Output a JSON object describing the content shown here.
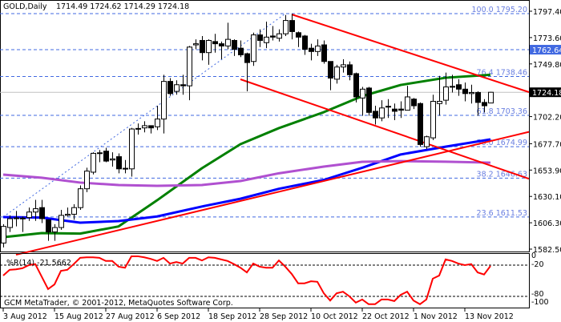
{
  "header": {
    "symbol": "GOLD,Daily",
    "ohlc": "1714.49 1724.62 1714.29 1724.18"
  },
  "footer": {
    "copyright": "GCM MetaTrader, © 2001-2012, MetaQuotes Software Corp."
  },
  "colors": {
    "bull": "#ffffff",
    "bear": "#000000",
    "ma_green": "#008000",
    "ma_blue": "#0000ff",
    "ma_purple": "#b050d0",
    "trendline": "#ff0000",
    "fib": "#4169e1",
    "wpr": "#ff0000",
    "bid_line": "#c0c0c0",
    "hline_label_bg": "#4169e1"
  },
  "chart_data": [
    {
      "type": "candlestick",
      "title": "GOLD,Daily",
      "y_ticks": [
        "1797.40",
        "1773.60",
        "1749.80",
        "1702.20",
        "1677.70",
        "1653.90",
        "1630.10",
        "1606.30",
        "1582.50"
      ],
      "ylim": [
        1582.5,
        1797.4
      ],
      "x_ticks": [
        "3 Aug 2012",
        "15 Aug 2012",
        "27 Aug 2012",
        "6 Sep 2012",
        "18 Sep 2012",
        "28 Sep 2012",
        "10 Oct 2012",
        "22 Oct 2012",
        "1 Nov 2012",
        "13 Nov 2012"
      ],
      "current_price": "1724.18",
      "horizontal_line": "1762.64",
      "candles_columns": [
        "date",
        "open",
        "high",
        "low",
        "close"
      ],
      "candles": [
        [
          "2012-08-03",
          1588,
          1605,
          1584,
          1603
        ],
        [
          "2012-08-06",
          1602,
          1613,
          1598,
          1610
        ],
        [
          "2012-08-07",
          1610,
          1617,
          1603,
          1610.7
        ],
        [
          "2012-08-08",
          1610.5,
          1612,
          1598,
          1610
        ],
        [
          "2012-08-09",
          1611,
          1620,
          1608,
          1616
        ],
        [
          "2012-08-10",
          1616,
          1627,
          1608,
          1619
        ],
        [
          "2012-08-13",
          1620,
          1627,
          1606,
          1610
        ],
        [
          "2012-08-14",
          1609,
          1609,
          1590,
          1598
        ],
        [
          "2012-08-15",
          1598,
          1605,
          1590,
          1602
        ],
        [
          "2012-08-16",
          1602,
          1618,
          1600,
          1613
        ],
        [
          "2012-08-17",
          1613,
          1620,
          1612,
          1614
        ],
        [
          "2012-08-20",
          1614,
          1623,
          1609,
          1620
        ],
        [
          "2012-08-21",
          1620,
          1640,
          1618,
          1637
        ],
        [
          "2012-08-22",
          1637,
          1656,
          1634,
          1653
        ],
        [
          "2012-08-23",
          1652,
          1670,
          1650,
          1669
        ],
        [
          "2012-08-24",
          1669,
          1672,
          1661,
          1669.5
        ],
        [
          "2012-08-27",
          1671,
          1674,
          1661,
          1662
        ],
        [
          "2012-08-28",
          1663,
          1670,
          1657,
          1664
        ],
        [
          "2012-08-29",
          1666,
          1669,
          1651,
          1655
        ],
        [
          "2012-08-30",
          1655,
          1663,
          1651,
          1655.5
        ],
        [
          "2012-08-31",
          1655,
          1692,
          1648,
          1691
        ],
        [
          "2012-09-03",
          1691,
          1696,
          1686,
          1691.5
        ],
        [
          "2012-09-04",
          1692,
          1698,
          1688,
          1694
        ],
        [
          "2012-09-05",
          1694,
          1694,
          1687,
          1692
        ],
        [
          "2012-09-06",
          1693,
          1712,
          1690,
          1700
        ],
        [
          "2012-09-07",
          1700,
          1740,
          1687,
          1734
        ],
        [
          "2012-09-10",
          1734,
          1737,
          1721,
          1723
        ],
        [
          "2012-09-11",
          1725,
          1735,
          1722,
          1731
        ],
        [
          "2012-09-12",
          1731,
          1740,
          1722,
          1730
        ],
        [
          "2012-09-13",
          1730,
          1766,
          1717,
          1765
        ],
        [
          "2012-09-14",
          1767,
          1772,
          1763,
          1768
        ],
        [
          "2012-09-17",
          1771,
          1775,
          1753,
          1760
        ],
        [
          "2012-09-18",
          1760,
          1772,
          1749,
          1771
        ],
        [
          "2012-09-19",
          1770,
          1777,
          1760,
          1768
        ],
        [
          "2012-09-20",
          1768,
          1770,
          1754,
          1766
        ],
        [
          "2012-09-21",
          1766,
          1787,
          1763,
          1772
        ],
        [
          "2012-09-24",
          1771,
          1772,
          1757,
          1763
        ],
        [
          "2012-09-25",
          1764,
          1771,
          1756,
          1758
        ],
        [
          "2012-09-26",
          1759,
          1760,
          1725,
          1751
        ],
        [
          "2012-09-27",
          1752,
          1778,
          1748,
          1776
        ],
        [
          "2012-09-28",
          1776,
          1781,
          1765,
          1771
        ],
        [
          "2012-10-01",
          1769,
          1788,
          1764,
          1774
        ],
        [
          "2012-10-02",
          1775,
          1784,
          1771,
          1774
        ],
        [
          "2012-10-03",
          1773,
          1781,
          1770,
          1777
        ],
        [
          "2012-10-04",
          1777,
          1794,
          1775,
          1789
        ],
        [
          "2012-10-05",
          1789,
          1795,
          1772,
          1779
        ],
        [
          "2012-10-08",
          1778,
          1779,
          1765,
          1774
        ],
        [
          "2012-10-09",
          1775,
          1776,
          1758,
          1763
        ],
        [
          "2012-10-10",
          1764,
          1768,
          1753,
          1761
        ],
        [
          "2012-10-11",
          1761,
          1772,
          1757,
          1766
        ],
        [
          "2012-10-12",
          1767,
          1771,
          1750,
          1752
        ],
        [
          "2012-10-15",
          1752,
          1752,
          1726,
          1737
        ],
        [
          "2012-10-16",
          1736,
          1749,
          1732,
          1747
        ],
        [
          "2012-10-17",
          1747,
          1754,
          1742,
          1749
        ],
        [
          "2012-10-18",
          1749,
          1752,
          1735,
          1740
        ],
        [
          "2012-10-19",
          1741,
          1742,
          1715,
          1720
        ],
        [
          "2012-10-22",
          1719,
          1729,
          1703,
          1727
        ],
        [
          "2012-10-23",
          1728,
          1729,
          1703,
          1706
        ],
        [
          "2012-10-24",
          1707,
          1712,
          1695,
          1701
        ],
        [
          "2012-10-25",
          1701,
          1717,
          1698,
          1710
        ],
        [
          "2012-10-26",
          1711,
          1718,
          1701,
          1711.5
        ],
        [
          "2012-10-29",
          1709,
          1714,
          1699,
          1707
        ],
        [
          "2012-10-30",
          1709,
          1716,
          1701,
          1708
        ],
        [
          "2012-10-31",
          1708,
          1730,
          1708,
          1720
        ],
        [
          "2012-11-01",
          1718,
          1719,
          1709,
          1712
        ],
        [
          "2012-11-02",
          1714,
          1715,
          1675,
          1677
        ],
        [
          "2012-11-05",
          1675,
          1685,
          1673,
          1684
        ],
        [
          "2012-11-06",
          1683,
          1722,
          1681,
          1716
        ],
        [
          "2012-11-07",
          1714,
          1739,
          1703,
          1716
        ],
        [
          "2012-11-08",
          1717,
          1742,
          1713,
          1729
        ],
        [
          "2012-11-09",
          1729,
          1740,
          1724,
          1729.5
        ],
        [
          "2012-11-12",
          1731,
          1736,
          1721,
          1727
        ],
        [
          "2012-11-13",
          1727,
          1733,
          1716,
          1723
        ],
        [
          "2012-11-14",
          1723,
          1731,
          1714,
          1724
        ],
        [
          "2012-11-15",
          1724,
          1725,
          1703,
          1715
        ],
        [
          "2012-11-16",
          1715,
          1718,
          1706,
          1712
        ],
        [
          "2012-11-19",
          1714.49,
          1724.62,
          1714.29,
          1724.18
        ]
      ],
      "moving_averages": [
        {
          "color_key": "ma_green",
          "points": [
            [
              "2012-08-03",
              1593.3
            ],
            [
              "2012-08-13",
              1597
            ],
            [
              "2012-08-21",
              1596.5
            ],
            [
              "2012-08-29",
              1603
            ],
            [
              "2012-09-06",
              1626.6
            ],
            [
              "2012-09-17",
              1655.6
            ],
            [
              "2012-09-25",
              1677.3
            ],
            [
              "2012-10-03",
              1691.8
            ],
            [
              "2012-10-12",
              1706.2
            ],
            [
              "2012-10-22",
              1720.7
            ],
            [
              "2012-10-30",
              1730.8
            ],
            [
              "2012-11-08",
              1737.3
            ],
            [
              "2012-11-19",
              1740
            ]
          ]
        },
        {
          "color_key": "ma_blue",
          "points": [
            [
              "2012-08-03",
              1611.4
            ],
            [
              "2012-08-13",
              1611
            ],
            [
              "2012-08-21",
              1606.4
            ],
            [
              "2012-08-29",
              1607.8
            ],
            [
              "2012-09-06",
              1612
            ],
            [
              "2012-09-17",
              1621
            ],
            [
              "2012-09-25",
              1628
            ],
            [
              "2012-10-03",
              1637
            ],
            [
              "2012-10-12",
              1645
            ],
            [
              "2012-10-22",
              1656
            ],
            [
              "2012-10-30",
              1668
            ],
            [
              "2012-11-08",
              1675
            ],
            [
              "2012-11-19",
              1681.6
            ]
          ]
        },
        {
          "color_key": "ma_purple",
          "points": [
            [
              "2012-08-03",
              1649.8
            ],
            [
              "2012-08-13",
              1647
            ],
            [
              "2012-08-21",
              1642.6
            ],
            [
              "2012-08-29",
              1640.4
            ],
            [
              "2012-09-06",
              1639.7
            ],
            [
              "2012-09-17",
              1640.4
            ],
            [
              "2012-09-25",
              1644
            ],
            [
              "2012-10-03",
              1651
            ],
            [
              "2012-10-12",
              1657
            ],
            [
              "2012-10-22",
              1661.4
            ],
            [
              "2012-10-30",
              1662
            ],
            [
              "2012-11-08",
              1661.5
            ],
            [
              "2012-11-19",
              1660.6
            ]
          ]
        }
      ],
      "trendlines": [
        {
          "from": [
            "2012-08-07",
            1577.4
          ],
          "to": [
            "2012-11-19",
            1680.1
          ],
          "ray": true
        },
        {
          "from": [
            "2012-10-05",
            1794.5
          ],
          "to": [
            "2012-11-19",
            1735.7
          ],
          "ray": true
        },
        {
          "from": [
            "2012-09-25",
            1735.9
          ],
          "to": [
            "2012-11-19",
            1658.0
          ],
          "ray": true
        }
      ],
      "fibonacci": {
        "from": [
          "2012-08-03",
          1611.53
        ],
        "to": [
          "2012-10-04",
          1795.2
        ],
        "levels": [
          {
            "label": "100.0 1795.20",
            "price": 1795.2
          },
          {
            "label": "76.4 1738.46",
            "price": 1738.46
          },
          {
            "label": "61.8 1703.36",
            "price": 1703.36
          },
          {
            "label": "50.0 1674.99",
            "price": 1674.99
          },
          {
            "label": "38.2 1646.63",
            "price": 1646.63
          },
          {
            "label": "23.6 1611.53",
            "price": 1611.53
          }
        ]
      }
    },
    {
      "type": "line",
      "title": "%R(14) -21.5662",
      "ylim": [
        -100,
        0
      ],
      "y_ticks": [
        "0",
        "-20",
        "-80",
        "-100"
      ],
      "levels": [
        -20,
        -80
      ],
      "values": [
        -40,
        -29,
        -28,
        -26,
        -20,
        -18,
        -42,
        -66,
        -57,
        -31,
        -29,
        -18,
        -6,
        -5,
        -5,
        -6,
        -12,
        -12,
        -23,
        -25,
        -3,
        -3,
        -5,
        -8,
        -12,
        -6,
        -17,
        -14,
        -17,
        -6,
        -6,
        -11,
        -5,
        -6,
        -9,
        -12,
        -18,
        -25,
        -34,
        -17,
        -23,
        -25,
        -25,
        -11,
        -23,
        -37,
        -55,
        -55,
        -51,
        -52,
        -74,
        -88,
        -74,
        -71,
        -80,
        -92,
        -86,
        -95,
        -95,
        -86,
        -86,
        -89,
        -77,
        -71,
        -88,
        -95,
        -86,
        -46,
        -40,
        -9,
        -12,
        -17,
        -20,
        -18,
        -34,
        -38,
        -21.57
      ]
    }
  ]
}
